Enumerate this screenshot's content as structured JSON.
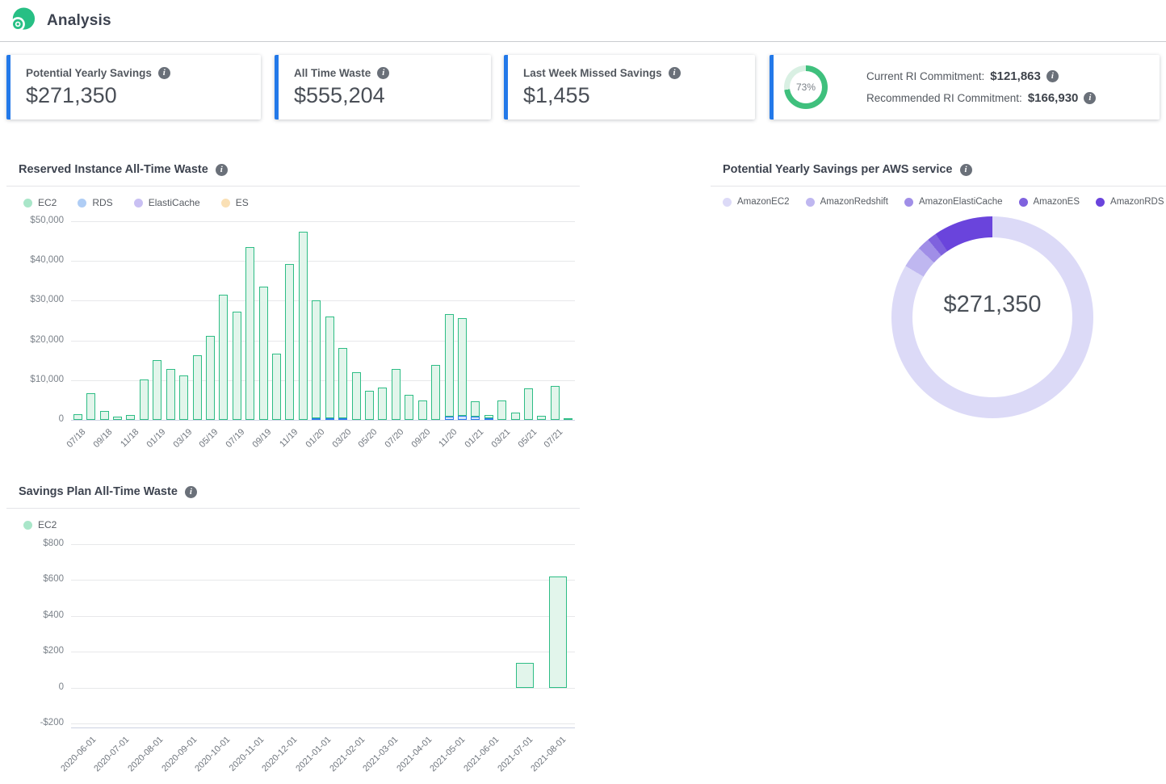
{
  "header": {
    "title": "Analysis",
    "logo": "spot-logo"
  },
  "colors": {
    "accent_blue": "#2379e9",
    "ec2_green_border": "#2ebd85",
    "ec2_green_fill": "#e2f5eb",
    "rds_blue_border": "#2b7cea",
    "rds_blue_fill": "#d8e7fb",
    "header_border": "#c9ccd0",
    "grid": "#e7e8ea"
  },
  "kpi_cards": [
    {
      "label": "Potential Yearly Savings",
      "value": "$271,350"
    },
    {
      "label": "All Time Waste",
      "value": "$555,204"
    },
    {
      "label": "Last Week Missed Savings",
      "value": "$1,455"
    }
  ],
  "ri_card": {
    "percent_label": "73%",
    "ring": {
      "pct": 73,
      "color": "#3fc07d",
      "track": "#d9f0e3"
    },
    "rows": [
      {
        "label": "Current RI Commitment:",
        "value": "$121,863"
      },
      {
        "label": "Recommended RI Commitment:",
        "value": "$166,930"
      }
    ]
  },
  "chart_data": [
    {
      "type": "bar",
      "title": "Reserved Instance All-Time Waste",
      "stacked": true,
      "ylim": [
        0,
        50000
      ],
      "yticks": [
        "$50,000",
        "$40,000",
        "$30,000",
        "$20,000",
        "$10,000",
        "0"
      ],
      "categories": [
        "07/18",
        "08/18",
        "09/18",
        "10/18",
        "11/18",
        "12/18",
        "01/19",
        "02/19",
        "03/19",
        "04/19",
        "05/19",
        "06/19",
        "07/19",
        "08/19",
        "09/19",
        "10/19",
        "11/19",
        "12/19",
        "01/20",
        "02/20",
        "03/20",
        "04/20",
        "05/20",
        "06/20",
        "07/20",
        "08/20",
        "09/20",
        "10/20",
        "11/20",
        "12/20",
        "01/21",
        "02/21",
        "03/21",
        "04/21",
        "05/21",
        "06/21",
        "07/21",
        "08/21"
      ],
      "series": [
        {
          "name": "EC2",
          "dot": "#a9e6c9",
          "border": "#2ebd85",
          "fill": "#e2f5eb",
          "values": [
            1500,
            6800,
            2300,
            900,
            1200,
            10200,
            15000,
            12800,
            11200,
            16200,
            21200,
            31600,
            27200,
            43400,
            33600,
            16700,
            39200,
            47300,
            29700,
            25600,
            17600,
            12000,
            7400,
            8200,
            12900,
            6300,
            4800,
            13900,
            25800,
            24700,
            3800,
            700,
            4800,
            1800,
            7900,
            1000,
            8600,
            300
          ]
        },
        {
          "name": "RDS",
          "dot": "#afcdf5",
          "border": "#2b7cea",
          "fill": "#d8e7fb",
          "values": [
            0,
            0,
            0,
            0,
            0,
            0,
            0,
            0,
            0,
            0,
            0,
            0,
            0,
            0,
            0,
            0,
            0,
            0,
            400,
            400,
            400,
            0,
            0,
            0,
            0,
            0,
            0,
            0,
            800,
            1000,
            900,
            500,
            0,
            0,
            0,
            0,
            0,
            0
          ]
        },
        {
          "name": "ElastiCache",
          "dot": "#c9c0f3",
          "border": "#8f7be0",
          "fill": "#e6e1f9",
          "values": [
            0,
            0,
            0,
            0,
            0,
            0,
            0,
            0,
            0,
            0,
            0,
            0,
            0,
            0,
            0,
            0,
            0,
            0,
            0,
            0,
            0,
            0,
            0,
            0,
            0,
            0,
            0,
            0,
            0,
            0,
            0,
            0,
            0,
            0,
            0,
            0,
            0,
            0
          ]
        },
        {
          "name": "ES",
          "dot": "#fae0b5",
          "border": "#f0b15e",
          "fill": "#fdeed6",
          "values": [
            0,
            0,
            0,
            0,
            0,
            0,
            0,
            0,
            0,
            0,
            0,
            0,
            0,
            0,
            0,
            0,
            0,
            0,
            0,
            0,
            0,
            0,
            0,
            0,
            0,
            0,
            0,
            0,
            0,
            0,
            0,
            0,
            0,
            0,
            0,
            0,
            0,
            0
          ]
        }
      ]
    },
    {
      "type": "pie",
      "title": "Potential Yearly Savings per AWS service",
      "center_label": "$271,350",
      "total": "$271,350",
      "slices": [
        {
          "name": "AmazonEC2",
          "color": "#dcdaf7",
          "share_pct": 83.5
        },
        {
          "name": "AmazonRedshift",
          "color": "#bfb7f0",
          "share_pct": 3.5
        },
        {
          "name": "AmazonElastiCache",
          "color": "#a08ee7",
          "share_pct": 2.0
        },
        {
          "name": "AmazonES",
          "color": "#7f62de",
          "share_pct": 1.5
        },
        {
          "name": "AmazonRDS",
          "color": "#6a44dc",
          "share_pct": 9.5
        }
      ],
      "legend_position": "top"
    },
    {
      "type": "bar",
      "title": "Savings Plan All-Time Waste",
      "stacked": false,
      "ylim": [
        -200,
        800
      ],
      "yticks": [
        "$800",
        "$600",
        "$400",
        "$200",
        "0",
        "-$200"
      ],
      "categories": [
        "2020-06-01",
        "2020-07-01",
        "2020-08-01",
        "2020-09-01",
        "2020-10-01",
        "2020-11-01",
        "2020-12-01",
        "2021-01-01",
        "2021-02-01",
        "2021-03-01",
        "2021-04-01",
        "2021-05-01",
        "2021-06-01",
        "2021-07-01",
        "2021-08-01"
      ],
      "series": [
        {
          "name": "EC2",
          "dot": "#a9e6c9",
          "border": "#2ebd85",
          "fill": "#e2f5eb",
          "values": [
            0,
            0,
            0,
            0,
            0,
            0,
            0,
            0,
            0,
            0,
            0,
            0,
            0,
            140,
            620
          ]
        }
      ]
    }
  ]
}
